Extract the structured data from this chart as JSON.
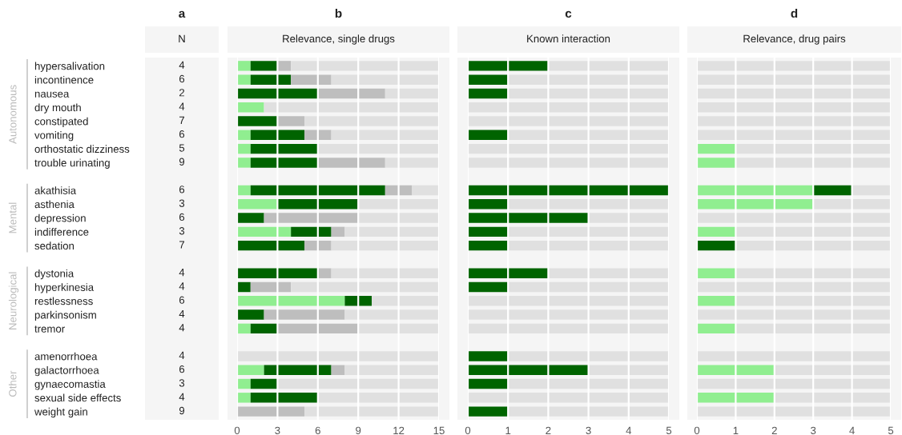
{
  "chart_data": [
    {
      "type": "other",
      "title": "a",
      "subtitle": "N",
      "data_labels": true,
      "categories": [
        "hypersalivation",
        "incontinence",
        "nausea",
        "dry mouth",
        "constipated",
        "vomiting",
        "orthostatic dizziness",
        "trouble urinating",
        null,
        "akathisia",
        "asthenia",
        "depression",
        "indifference",
        "sedation",
        null,
        "dystonia",
        "hyperkinesia",
        "restlessness",
        "parkinsonism",
        "tremor",
        null,
        "amenorrhoea",
        "galactorrhoea",
        "gynaecomastia",
        "sexual side effects",
        "weight gain"
      ],
      "values": [
        4,
        6,
        2,
        4,
        7,
        6,
        5,
        9,
        null,
        6,
        3,
        6,
        3,
        7,
        null,
        4,
        4,
        6,
        4,
        4,
        null,
        4,
        6,
        3,
        4,
        9
      ],
      "annotations": [
        "Autonomous",
        "Mental",
        "Neurological",
        "Other"
      ]
    },
    {
      "type": "bar",
      "orientation": "horizontal",
      "stacked": true,
      "title": "b",
      "subtitle": "Relevance, single drugs",
      "tick_labels": "x",
      "grid": "x",
      "categories": [
        null,
        null,
        null,
        null,
        null,
        null,
        null,
        null,
        null,
        null,
        null,
        null,
        null,
        null,
        null,
        null,
        null,
        null,
        null,
        null,
        null,
        null,
        null,
        null,
        null,
        null
      ],
      "xlim": [
        0,
        15
      ],
      "xticks": [
        0,
        3,
        6,
        9,
        12,
        15
      ],
      "series": [
        {
          "color": "#90ee90",
          "values": [
            1,
            1,
            0,
            2,
            0,
            1,
            1,
            1,
            null,
            1,
            3,
            0,
            4,
            0,
            null,
            0,
            0,
            8,
            0,
            1,
            null,
            0,
            2,
            1,
            1,
            0
          ]
        },
        {
          "color": "#006400",
          "values": [
            2,
            3,
            6,
            0,
            3,
            4,
            5,
            5,
            null,
            10,
            6,
            2,
            3,
            5,
            null,
            6,
            1,
            2,
            2,
            2,
            null,
            0,
            5,
            2,
            5,
            0
          ]
        },
        {
          "color": "#bebebe",
          "values": [
            1,
            3,
            5,
            0,
            2,
            2,
            0,
            5,
            null,
            2,
            0,
            7,
            1,
            2,
            null,
            1,
            3,
            0,
            6,
            6,
            null,
            0,
            1,
            0,
            0,
            5
          ]
        },
        {
          "color": "#e0e0e0",
          "values": [
            11,
            8,
            4,
            13,
            10,
            8,
            9,
            4,
            null,
            2,
            6,
            6,
            7,
            8,
            null,
            8,
            11,
            5,
            7,
            6,
            null,
            15,
            7,
            12,
            9,
            10
          ]
        }
      ]
    },
    {
      "type": "bar",
      "orientation": "horizontal",
      "stacked": true,
      "title": "c",
      "subtitle": "Known interaction",
      "tick_labels": "x",
      "grid": "x",
      "categories": [
        null,
        null,
        null,
        null,
        null,
        null,
        null,
        null,
        null,
        null,
        null,
        null,
        null,
        null,
        null,
        null,
        null,
        null,
        null,
        null,
        null,
        null,
        null,
        null,
        null,
        null
      ],
      "xlim": [
        0,
        5
      ],
      "xticks": [
        0,
        1,
        2,
        3,
        4,
        5
      ],
      "series": [
        {
          "color": "#006400",
          "values": [
            2,
            1,
            1,
            0,
            0,
            1,
            0,
            0,
            null,
            5,
            1,
            3,
            1,
            1,
            null,
            2,
            1,
            0,
            0,
            0,
            null,
            1,
            3,
            1,
            0,
            1
          ]
        },
        {
          "color": "#e0e0e0",
          "values": [
            3,
            4,
            4,
            5,
            5,
            4,
            5,
            5,
            null,
            0,
            4,
            2,
            4,
            4,
            null,
            3,
            4,
            5,
            5,
            5,
            null,
            4,
            2,
            4,
            5,
            4
          ]
        }
      ]
    },
    {
      "type": "bar",
      "orientation": "horizontal",
      "stacked": true,
      "title": "d",
      "subtitle": "Relevance, drug pairs",
      "tick_labels": "x",
      "grid": "x",
      "categories": [
        null,
        null,
        null,
        null,
        null,
        null,
        null,
        null,
        null,
        null,
        null,
        null,
        null,
        null,
        null,
        null,
        null,
        null,
        null,
        null,
        null,
        null,
        null,
        null,
        null,
        null
      ],
      "xlim": [
        0,
        5
      ],
      "xticks": [
        0,
        1,
        2,
        3,
        4,
        5
      ],
      "series": [
        {
          "color": "#90ee90",
          "values": [
            0,
            0,
            0,
            0,
            0,
            0,
            1,
            1,
            null,
            3,
            3,
            0,
            1,
            0,
            null,
            1,
            0,
            1,
            0,
            1,
            null,
            0,
            2,
            0,
            2,
            0
          ]
        },
        {
          "color": "#006400",
          "values": [
            0,
            0,
            0,
            0,
            0,
            0,
            0,
            0,
            null,
            1,
            0,
            0,
            0,
            1,
            null,
            0,
            0,
            0,
            0,
            0,
            null,
            0,
            0,
            0,
            0,
            0
          ]
        },
        {
          "color": "#e0e0e0",
          "values": [
            5,
            5,
            5,
            5,
            5,
            5,
            4,
            4,
            null,
            1,
            2,
            5,
            4,
            4,
            null,
            4,
            5,
            4,
            5,
            4,
            null,
            5,
            3,
            5,
            3,
            5
          ]
        }
      ]
    }
  ]
}
